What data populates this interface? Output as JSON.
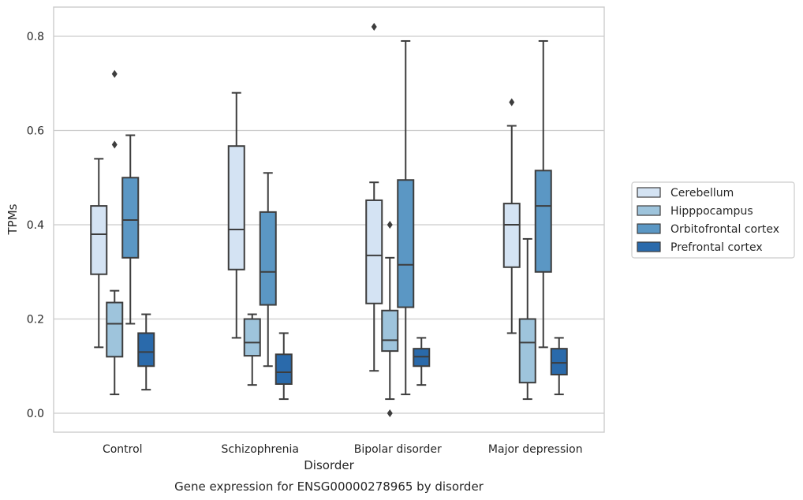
{
  "chart_data": {
    "type": "box",
    "title": "Gene expression for ENSG00000278965 by disorder",
    "xlabel": "Disorder",
    "ylabel": "TPMs",
    "ylim": [
      -0.04,
      0.86
    ],
    "yticks": [
      0.0,
      0.2,
      0.4,
      0.6,
      0.8
    ],
    "ytick_labels": [
      "0.0",
      "0.2",
      "0.4",
      "0.6",
      "0.8"
    ],
    "grid": "horizontal",
    "legend_position": "right",
    "categories": [
      "Control",
      "Schizophrenia",
      "Bipolar disorder",
      "Major depression"
    ],
    "series": [
      {
        "name": "Cerebellum",
        "color": "#d4e3f3",
        "boxes": [
          {
            "min": 0.14,
            "q1": 0.295,
            "median": 0.38,
            "q3": 0.44,
            "max": 0.54,
            "outliers": []
          },
          {
            "min": 0.16,
            "q1": 0.305,
            "median": 0.39,
            "q3": 0.567,
            "max": 0.68,
            "outliers": []
          },
          {
            "min": 0.09,
            "q1": 0.233,
            "median": 0.335,
            "q3": 0.452,
            "max": 0.49,
            "outliers": [
              0.82
            ]
          },
          {
            "min": 0.17,
            "q1": 0.31,
            "median": 0.4,
            "q3": 0.445,
            "max": 0.61,
            "outliers": [
              0.66
            ]
          }
        ]
      },
      {
        "name": "Hipppocampus",
        "color": "#9ec4dc",
        "boxes": [
          {
            "min": 0.04,
            "q1": 0.12,
            "median": 0.19,
            "q3": 0.235,
            "max": 0.26,
            "outliers": [
              0.57,
              0.72
            ]
          },
          {
            "min": 0.06,
            "q1": 0.122,
            "median": 0.15,
            "q3": 0.2,
            "max": 0.21,
            "outliers": []
          },
          {
            "min": 0.03,
            "q1": 0.132,
            "median": 0.155,
            "q3": 0.218,
            "max": 0.33,
            "outliers": [
              0.0,
              0.4
            ]
          },
          {
            "min": 0.03,
            "q1": 0.065,
            "median": 0.15,
            "q3": 0.2,
            "max": 0.37,
            "outliers": []
          }
        ]
      },
      {
        "name": "Orbitofrontal cortex",
        "color": "#5b97c4",
        "boxes": [
          {
            "min": 0.19,
            "q1": 0.33,
            "median": 0.41,
            "q3": 0.5,
            "max": 0.59,
            "outliers": []
          },
          {
            "min": 0.1,
            "q1": 0.23,
            "median": 0.3,
            "q3": 0.427,
            "max": 0.51,
            "outliers": []
          },
          {
            "min": 0.04,
            "q1": 0.225,
            "median": 0.315,
            "q3": 0.495,
            "max": 0.79,
            "outliers": []
          },
          {
            "min": 0.14,
            "q1": 0.3,
            "median": 0.44,
            "q3": 0.515,
            "max": 0.79,
            "outliers": []
          }
        ]
      },
      {
        "name": "Prefrontal cortex",
        "color": "#2a6aab",
        "boxes": [
          {
            "min": 0.05,
            "q1": 0.1,
            "median": 0.13,
            "q3": 0.17,
            "max": 0.21,
            "outliers": []
          },
          {
            "min": 0.03,
            "q1": 0.062,
            "median": 0.087,
            "q3": 0.125,
            "max": 0.17,
            "outliers": []
          },
          {
            "min": 0.06,
            "q1": 0.1,
            "median": 0.12,
            "q3": 0.137,
            "max": 0.16,
            "outliers": []
          },
          {
            "min": 0.04,
            "q1": 0.082,
            "median": 0.107,
            "q3": 0.137,
            "max": 0.16,
            "outliers": []
          }
        ]
      }
    ]
  }
}
